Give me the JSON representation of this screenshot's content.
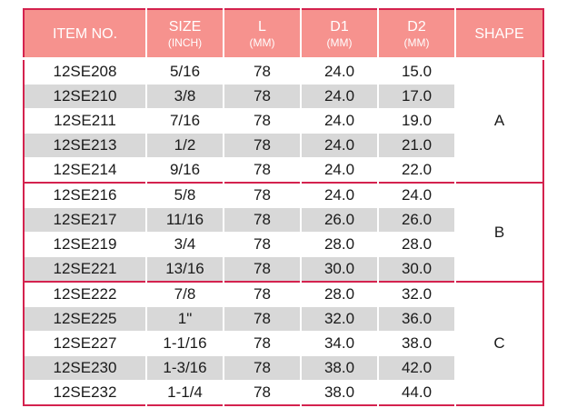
{
  "headers": {
    "item": {
      "main": "ITEM NO.",
      "sub": ""
    },
    "size": {
      "main": "SIZE",
      "sub": "(INCH)"
    },
    "l": {
      "main": "L",
      "sub": "(MM)"
    },
    "d1": {
      "main": "D1",
      "sub": "(MM)"
    },
    "d2": {
      "main": "D2",
      "sub": "(MM)"
    },
    "shape": {
      "main": "SHAPE",
      "sub": ""
    }
  },
  "groups": [
    {
      "shape": "A",
      "rows": [
        {
          "item": "12SE208",
          "size": "5/16",
          "l": "78",
          "d1": "24.0",
          "d2": "15.0"
        },
        {
          "item": "12SE210",
          "size": "3/8",
          "l": "78",
          "d1": "24.0",
          "d2": "17.0"
        },
        {
          "item": "12SE211",
          "size": "7/16",
          "l": "78",
          "d1": "24.0",
          "d2": "19.0"
        },
        {
          "item": "12SE213",
          "size": "1/2",
          "l": "78",
          "d1": "24.0",
          "d2": "21.0"
        },
        {
          "item": "12SE214",
          "size": "9/16",
          "l": "78",
          "d1": "24.0",
          "d2": "22.0"
        }
      ]
    },
    {
      "shape": "B",
      "rows": [
        {
          "item": "12SE216",
          "size": "5/8",
          "l": "78",
          "d1": "24.0",
          "d2": "24.0"
        },
        {
          "item": "12SE217",
          "size": "11/16",
          "l": "78",
          "d1": "26.0",
          "d2": "26.0"
        },
        {
          "item": "12SE219",
          "size": "3/4",
          "l": "78",
          "d1": "28.0",
          "d2": "28.0"
        },
        {
          "item": "12SE221",
          "size": "13/16",
          "l": "78",
          "d1": "30.0",
          "d2": "30.0"
        }
      ]
    },
    {
      "shape": "C",
      "rows": [
        {
          "item": "12SE222",
          "size": "7/8",
          "l": "78",
          "d1": "28.0",
          "d2": "32.0"
        },
        {
          "item": "12SE225",
          "size": "1\"",
          "l": "78",
          "d1": "32.0",
          "d2": "36.0"
        },
        {
          "item": "12SE227",
          "size": "1-1/16",
          "l": "78",
          "d1": "34.0",
          "d2": "38.0"
        },
        {
          "item": "12SE230",
          "size": "1-3/16",
          "l": "78",
          "d1": "38.0",
          "d2": "42.0"
        },
        {
          "item": "12SE232",
          "size": "1-1/4",
          "l": "78",
          "d1": "38.0",
          "d2": "44.0"
        }
      ]
    }
  ],
  "colors": {
    "header_bg": "#f6928e",
    "header_text": "#ffffff",
    "row_shade": "#d8d8d8",
    "border_accent": "#d4224e"
  }
}
